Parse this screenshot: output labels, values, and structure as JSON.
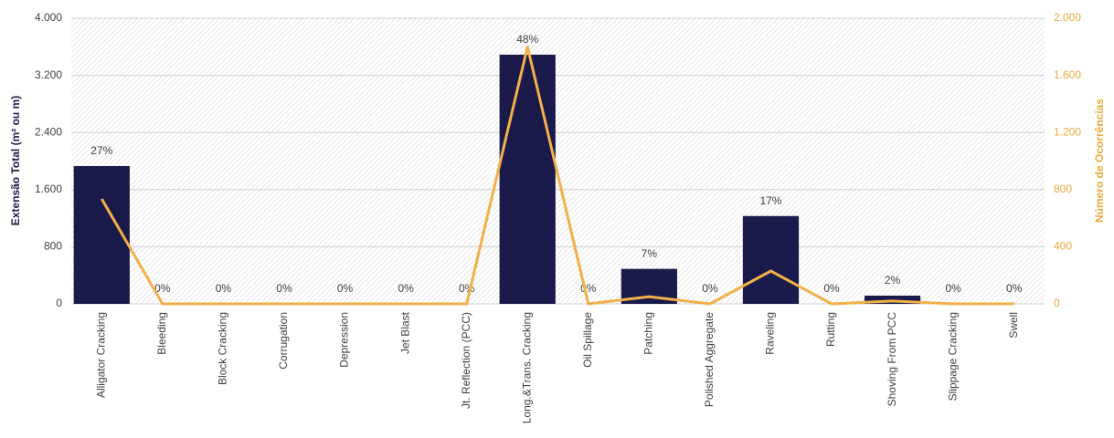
{
  "chart_data": {
    "type": "bar",
    "y_axis_title": "Extensão Total (m² ou m)",
    "y2_axis_title": "Número de Ocorrências",
    "categories": [
      "Alligator Cracking",
      "Bleeding",
      "Block Cracking",
      "Corrugation",
      "Depression",
      "Jet Blast",
      "Jt. Reflection (PCC)",
      "Long.&Trans. Cracking",
      "Oil Spillage",
      "Patching",
      "Polished Aggregate",
      "Raveling",
      "Rutting",
      "Shoving From PCC",
      "Slippage Cracking",
      "Swell"
    ],
    "series": [
      {
        "type": "bar",
        "color": "#1b1b4b",
        "values": [
          1930,
          0,
          0,
          0,
          0,
          0,
          0,
          3490,
          0,
          490,
          0,
          1230,
          0,
          115,
          0,
          0
        ],
        "data_labels": [
          "27%",
          "0%",
          "0%",
          "0%",
          "0%",
          "0%",
          "0%",
          "48%",
          "0%",
          "7%",
          "0%",
          "17%",
          "0%",
          "2%",
          "0%",
          "0%"
        ]
      },
      {
        "type": "line",
        "axis": "y2",
        "color": "#f2b049",
        "values": [
          735,
          0,
          0,
          0,
          0,
          0,
          0,
          1800,
          0,
          50,
          0,
          230,
          0,
          20,
          0,
          0
        ]
      }
    ],
    "ylim": [
      0,
      4000
    ],
    "yticks": [
      0,
      800,
      {
        "value": 1600,
        "label": "1.600"
      },
      {
        "value": 2400,
        "label": "2.400"
      },
      {
        "value": 3200,
        "label": "3.200"
      },
      {
        "value": 4000,
        "label": "4.000"
      }
    ],
    "y2lim": [
      0,
      2000
    ],
    "y2ticks": [
      0,
      400,
      800,
      {
        "value": 1200,
        "label": "1.200"
      },
      {
        "value": 1600,
        "label": "1.600"
      },
      {
        "value": 2000,
        "label": "2.000"
      }
    ],
    "y_axis_color": "#1b1b4b",
    "y2_axis_color": "#e8a93a",
    "grid": true
  }
}
